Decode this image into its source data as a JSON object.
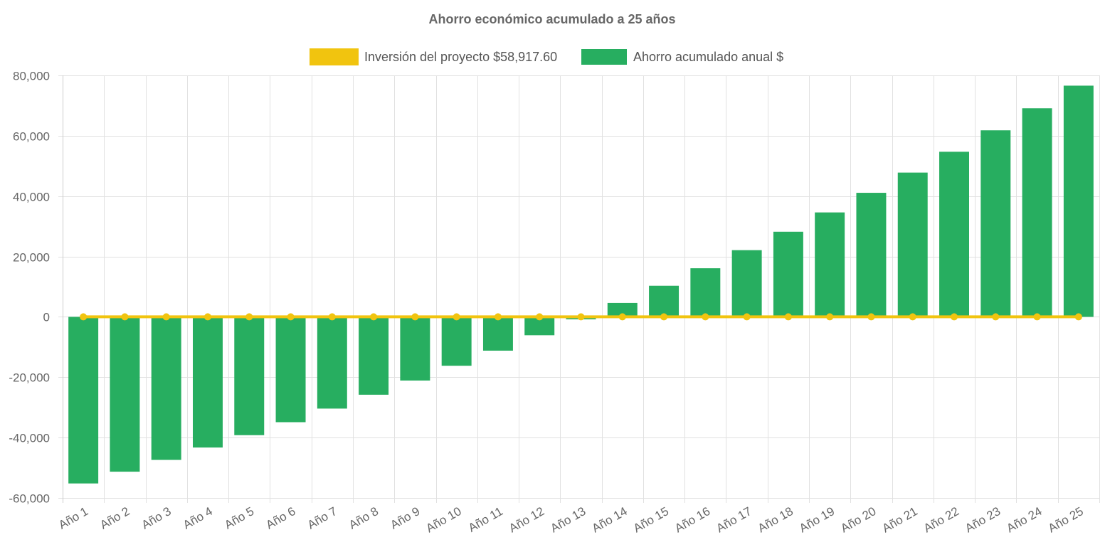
{
  "chart_data": {
    "type": "bar",
    "title": "Ahorro económico acumulado a 25 años",
    "legend_position": "top",
    "grid": true,
    "ylim": [
      -60000,
      80000
    ],
    "y_ticks": [
      80000,
      60000,
      40000,
      20000,
      0,
      -20000,
      -40000,
      -60000
    ],
    "y_tick_labels": [
      "80,000",
      "60,000",
      "40,000",
      "20,000",
      "0",
      "-20,000",
      "-40,000",
      "-60,000"
    ],
    "categories": [
      "Año 1",
      "Año 2",
      "Año 3",
      "Año 4",
      "Año 5",
      "Año 6",
      "Año 7",
      "Año 8",
      "Año 9",
      "Año 10",
      "Año 11",
      "Año 12",
      "Año 13",
      "Año 14",
      "Año 15",
      "Año 16",
      "Año 17",
      "Año 18",
      "Año 19",
      "Año 20",
      "Año 21",
      "Año 22",
      "Año 23",
      "Año 24",
      "Año 25"
    ],
    "series": [
      {
        "name": "Inversión del proyecto $58,917.60",
        "type": "line",
        "color": "#f1c40f",
        "values": [
          0,
          0,
          0,
          0,
          0,
          0,
          0,
          0,
          0,
          0,
          0,
          0,
          0,
          0,
          0,
          0,
          0,
          0,
          0,
          0,
          0,
          0,
          0,
          0,
          0
        ]
      },
      {
        "name": "Ahorro acumulado anual $",
        "type": "bar",
        "color": "#27ae60",
        "values": [
          -55200,
          -51300,
          -47400,
          -43300,
          -39200,
          -34900,
          -30400,
          -25800,
          -21100,
          -16200,
          -11200,
          -6100,
          -800,
          4600,
          10300,
          16100,
          22100,
          28200,
          34600,
          41100,
          47800,
          54700,
          61800,
          69100,
          76600
        ]
      }
    ]
  }
}
